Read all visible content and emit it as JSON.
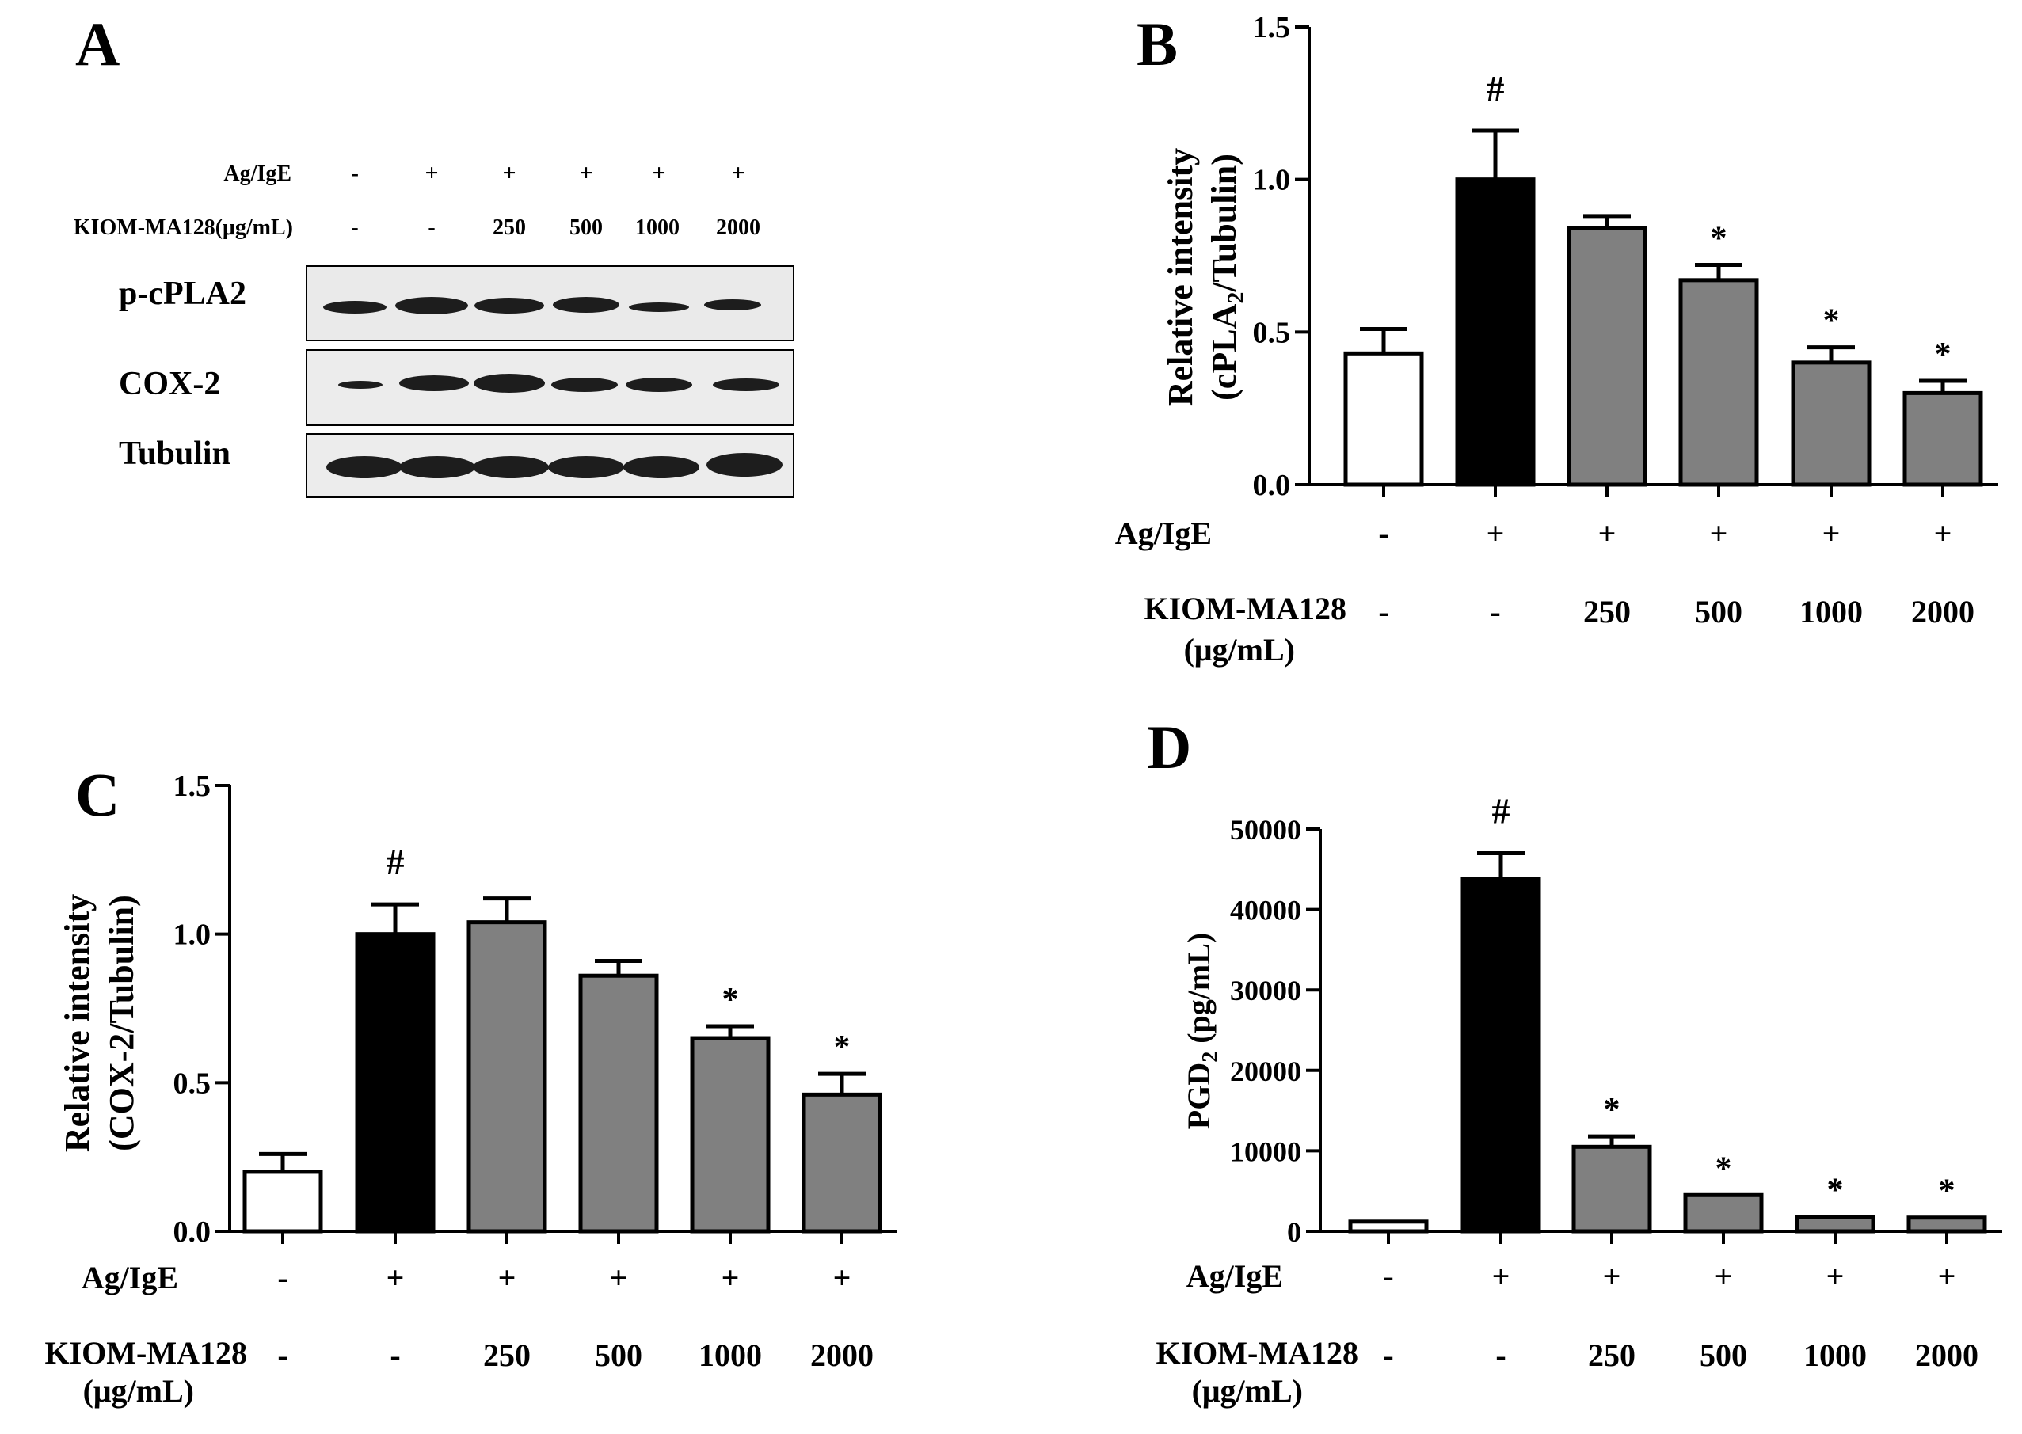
{
  "panel_a": {
    "letter": "A",
    "row1_label": "Ag/IgE",
    "row1_values": [
      "-",
      "+",
      "+",
      "+",
      "+",
      "+"
    ],
    "row2_label": "KIOM-MA128(μg/mL)",
    "row2_values": [
      "-",
      "-",
      "250",
      "500",
      "1000",
      "2000"
    ],
    "blots": [
      {
        "label": "p-cPLA2",
        "intensities": [
          0.55,
          0.9,
          0.85,
          0.8,
          0.5,
          0.55
        ]
      },
      {
        "label": "COX-2",
        "intensities": [
          0.3,
          0.85,
          0.95,
          0.7,
          0.7,
          0.6
        ]
      },
      {
        "label": "Tubulin",
        "intensities": [
          1,
          1,
          1,
          1,
          1,
          1
        ]
      }
    ]
  },
  "chart_data": [
    {
      "panel": "B",
      "type": "bar",
      "ylabel_line1": "Relative intensity",
      "ylabel_line2_pre": "(cPLA",
      "ylabel_line2_sub": "2",
      "ylabel_line2_post": "/Tubulin)",
      "ylim": [
        0,
        1.5
      ],
      "yticks": [
        0,
        0.5,
        1.0,
        1.5
      ],
      "ytick_labels": [
        "0.0",
        "0.5",
        "1.0",
        "1.5"
      ],
      "row1_label": "Ag/IgE",
      "row1_values": [
        "-",
        "+",
        "+",
        "+",
        "+",
        "+"
      ],
      "row2_label_line1": "KIOM-MA128",
      "row2_label_line2": "(μg/mL)",
      "row2_values": [
        "-",
        "-",
        "250",
        "500",
        "1000",
        "2000"
      ],
      "values": [
        0.43,
        1.0,
        0.84,
        0.67,
        0.4,
        0.3
      ],
      "errors": [
        0.08,
        0.16,
        0.04,
        0.05,
        0.05,
        0.04
      ],
      "bar_colors": [
        "#ffffff",
        "#000000",
        "#808080",
        "#808080",
        "#808080",
        "#808080"
      ],
      "annotations": [
        "",
        "#",
        "",
        "*",
        "*",
        "*"
      ]
    },
    {
      "panel": "C",
      "type": "bar",
      "ylabel_line1": "Relative intensity",
      "ylabel_line2_pre": "(COX-2/Tubulin)",
      "ylabel_line2_sub": "",
      "ylabel_line2_post": "",
      "ylim": [
        0,
        1.5
      ],
      "yticks": [
        0,
        0.5,
        1.0,
        1.5
      ],
      "ytick_labels": [
        "0.0",
        "0.5",
        "1.0",
        "1.5"
      ],
      "row1_label": "Ag/IgE",
      "row1_values": [
        "-",
        "+",
        "+",
        "+",
        "+",
        "+"
      ],
      "row2_label_line1": "KIOM-MA128",
      "row2_label_line2": "(μg/mL)",
      "row2_values": [
        "-",
        "-",
        "250",
        "500",
        "1000",
        "2000"
      ],
      "values": [
        0.2,
        1.0,
        1.04,
        0.86,
        0.65,
        0.46
      ],
      "errors": [
        0.06,
        0.1,
        0.08,
        0.05,
        0.04,
        0.07
      ],
      "bar_colors": [
        "#ffffff",
        "#000000",
        "#808080",
        "#808080",
        "#808080",
        "#808080"
      ],
      "annotations": [
        "",
        "#",
        "",
        "",
        "*",
        "*"
      ]
    },
    {
      "panel": "D",
      "type": "bar",
      "ylabel_line1": "",
      "ylabel_line2_pre": "PGD",
      "ylabel_line2_sub": "2",
      "ylabel_line2_post": " (pg/mL)",
      "ylim": [
        0,
        50000
      ],
      "yticks": [
        0,
        10000,
        20000,
        30000,
        40000,
        50000
      ],
      "ytick_labels": [
        "0",
        "10000",
        "20000",
        "30000",
        "40000",
        "50000"
      ],
      "row1_label": "Ag/IgE",
      "row1_values": [
        "-",
        "+",
        "+",
        "+",
        "+",
        "+"
      ],
      "row2_label_line1": "KIOM-MA128",
      "row2_label_line2": "(μg/mL)",
      "row2_values": [
        "-",
        "-",
        "250",
        "500",
        "1000",
        "2000"
      ],
      "values": [
        1200,
        43800,
        10500,
        4500,
        1800,
        1700
      ],
      "errors": [
        0,
        3200,
        1300,
        0,
        0,
        0
      ],
      "bar_colors": [
        "#ffffff",
        "#000000",
        "#808080",
        "#808080",
        "#808080",
        "#808080"
      ],
      "annotations": [
        "",
        "#",
        "*",
        "*",
        "*",
        "*"
      ]
    }
  ]
}
